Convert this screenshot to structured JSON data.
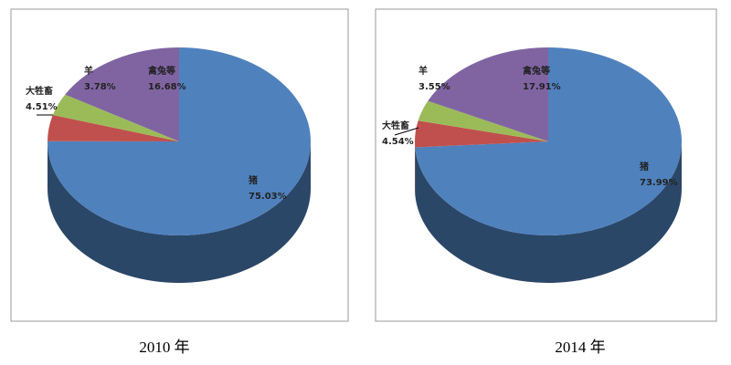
{
  "chart_data": [
    {
      "type": "pie",
      "title": "2010 年",
      "categories": [
        "猪",
        "大牲畜",
        "羊",
        "禽兔等"
      ],
      "values": [
        75.03,
        4.51,
        3.78,
        16.68
      ],
      "value_labels": [
        "75.03%",
        "4.51%",
        "3.78%",
        "16.68%"
      ],
      "colors": [
        "#4f81bd",
        "#c0504d",
        "#9bbb59",
        "#8064a2"
      ]
    },
    {
      "type": "pie",
      "title": "2014 年",
      "categories": [
        "猪",
        "大牲畜",
        "羊",
        "禽兔等"
      ],
      "values": [
        73.99,
        4.54,
        3.55,
        17.91
      ],
      "value_labels": [
        "73.99%",
        "4.54%",
        "3.55%",
        "17.91%"
      ],
      "colors": [
        "#4f81bd",
        "#c0504d",
        "#9bbb59",
        "#8064a2"
      ]
    }
  ]
}
